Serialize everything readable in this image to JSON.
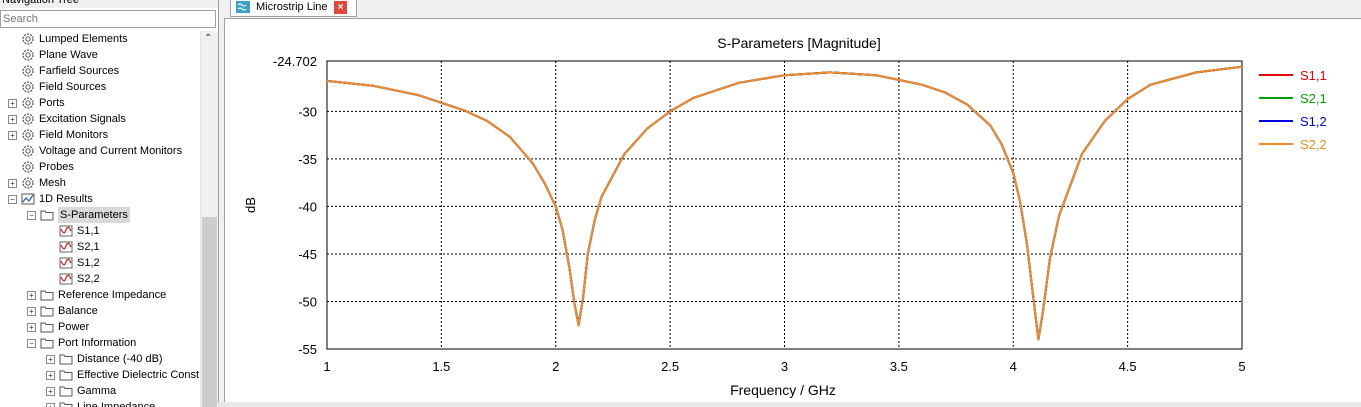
{
  "nav": {
    "title": "Navigation Tree",
    "search_placeholder": "Search",
    "items": [
      {
        "label": "Lumped Elements",
        "level": 1,
        "icon": "gear-icon",
        "expander": ""
      },
      {
        "label": "Plane Wave",
        "level": 1,
        "icon": "gear-icon",
        "expander": ""
      },
      {
        "label": "Farfield Sources",
        "level": 1,
        "icon": "gear-icon",
        "expander": ""
      },
      {
        "label": "Field Sources",
        "level": 1,
        "icon": "gear-icon",
        "expander": ""
      },
      {
        "label": "Ports",
        "level": 1,
        "icon": "gear-icon",
        "expander": "+"
      },
      {
        "label": "Excitation Signals",
        "level": 1,
        "icon": "gear-icon",
        "expander": "+"
      },
      {
        "label": "Field Monitors",
        "level": 1,
        "icon": "gear-icon",
        "expander": "+"
      },
      {
        "label": "Voltage and Current Monitors",
        "level": 1,
        "icon": "gear-icon",
        "expander": ""
      },
      {
        "label": "Probes",
        "level": 1,
        "icon": "gear-icon",
        "expander": ""
      },
      {
        "label": "Mesh",
        "level": 1,
        "icon": "gear-icon",
        "expander": "+"
      },
      {
        "label": "1D Results",
        "level": 1,
        "icon": "chart-icon",
        "expander": "−"
      },
      {
        "label": "S-Parameters",
        "level": 2,
        "icon": "folder-icon",
        "expander": "−",
        "selected": true
      },
      {
        "label": "S1,1",
        "level": 3,
        "icon": "curve-icon",
        "expander": ""
      },
      {
        "label": "S2,1",
        "level": 3,
        "icon": "curve-icon",
        "expander": ""
      },
      {
        "label": "S1,2",
        "level": 3,
        "icon": "curve-icon",
        "expander": ""
      },
      {
        "label": "S2,2",
        "level": 3,
        "icon": "curve-icon",
        "expander": ""
      },
      {
        "label": "Reference Impedance",
        "level": 2,
        "icon": "folder-icon",
        "expander": "+"
      },
      {
        "label": "Balance",
        "level": 2,
        "icon": "folder-icon",
        "expander": "+"
      },
      {
        "label": "Power",
        "level": 2,
        "icon": "folder-icon",
        "expander": "+"
      },
      {
        "label": "Port Information",
        "level": 2,
        "icon": "folder-icon",
        "expander": "−"
      },
      {
        "label": "Distance (-40 dB)",
        "level": 3,
        "icon": "folder-icon",
        "expander": "+"
      },
      {
        "label": "Effective Dielectric Const",
        "level": 3,
        "icon": "folder-icon",
        "expander": "+"
      },
      {
        "label": "Gamma",
        "level": 3,
        "icon": "folder-icon",
        "expander": "+"
      },
      {
        "label": "Line Impedance",
        "level": 3,
        "icon": "folder-icon",
        "expander": "+"
      }
    ]
  },
  "tab": {
    "label": "Microstrip Line",
    "icon": "microstrip-icon",
    "close": "close-icon"
  },
  "colors": {
    "s11": "#e8000b",
    "s21": "#00a000",
    "s12": "#0000e0",
    "s22": "#f28c28",
    "grid": "#000000"
  },
  "chart_data": {
    "type": "line",
    "title": "S-Parameters [Magnitude]",
    "xlabel": "Frequency / GHz",
    "ylabel": "dB",
    "xlim": [
      1,
      5
    ],
    "ylim": [
      -55,
      -24.702
    ],
    "xticks": [
      "1",
      "1.5",
      "2",
      "2.5",
      "3",
      "3.5",
      "4",
      "4.5",
      "5"
    ],
    "yticks": [
      "-24.702",
      "-30",
      "-35",
      "-40",
      "-45",
      "-50",
      "-55"
    ],
    "ytick_values": [
      -24.702,
      -30,
      -35,
      -40,
      -45,
      -50,
      -55
    ],
    "grid": true,
    "legend_position": "right",
    "x": [
      1.0,
      1.2,
      1.4,
      1.6,
      1.7,
      1.8,
      1.9,
      1.95,
      2.0,
      2.03,
      2.06,
      2.08,
      2.1,
      2.12,
      2.14,
      2.17,
      2.2,
      2.3,
      2.4,
      2.5,
      2.6,
      2.8,
      3.0,
      3.2,
      3.4,
      3.6,
      3.7,
      3.8,
      3.9,
      3.95,
      4.0,
      4.03,
      4.06,
      4.09,
      4.11,
      4.13,
      4.16,
      4.2,
      4.3,
      4.4,
      4.5,
      4.6,
      4.8,
      5.0
    ],
    "series": [
      {
        "name": "S1,1",
        "values": [
          -26.8,
          -27.3,
          -28.3,
          -29.9,
          -31.0,
          -32.7,
          -35.5,
          -37.5,
          -40.0,
          -42.5,
          -46.5,
          -50.0,
          -52.5,
          -49.5,
          -45.0,
          -41.5,
          -39.0,
          -34.5,
          -31.8,
          -30.0,
          -28.6,
          -27.0,
          -26.2,
          -25.9,
          -26.2,
          -27.2,
          -28.0,
          -29.3,
          -31.5,
          -33.5,
          -36.5,
          -39.5,
          -44.0,
          -50.0,
          -54.0,
          -51.0,
          -45.5,
          -41.0,
          -34.5,
          -31.0,
          -28.7,
          -27.2,
          -25.9,
          -25.3
        ]
      },
      {
        "name": "S2,1",
        "values": [
          -26.8,
          -27.3,
          -28.3,
          -29.9,
          -31.0,
          -32.7,
          -35.5,
          -37.5,
          -40.0,
          -42.5,
          -46.5,
          -50.0,
          -52.5,
          -49.5,
          -45.0,
          -41.5,
          -39.0,
          -34.5,
          -31.8,
          -30.0,
          -28.6,
          -27.0,
          -26.2,
          -25.9,
          -26.2,
          -27.2,
          -28.0,
          -29.3,
          -31.5,
          -33.5,
          -36.5,
          -39.5,
          -44.0,
          -50.0,
          -54.0,
          -51.0,
          -45.5,
          -41.0,
          -34.5,
          -31.0,
          -28.7,
          -27.2,
          -25.9,
          -25.3
        ]
      },
      {
        "name": "S1,2",
        "values": [
          -26.8,
          -27.3,
          -28.3,
          -29.9,
          -31.0,
          -32.7,
          -35.5,
          -37.5,
          -40.0,
          -42.5,
          -46.5,
          -50.0,
          -52.5,
          -49.5,
          -45.0,
          -41.5,
          -39.0,
          -34.5,
          -31.8,
          -30.0,
          -28.6,
          -27.0,
          -26.2,
          -25.9,
          -26.2,
          -27.2,
          -28.0,
          -29.3,
          -31.5,
          -33.5,
          -36.5,
          -39.5,
          -44.0,
          -50.0,
          -54.0,
          -51.0,
          -45.5,
          -41.0,
          -34.5,
          -31.0,
          -28.7,
          -27.2,
          -25.9,
          -25.3
        ]
      },
      {
        "name": "S2,2",
        "values": [
          -26.8,
          -27.3,
          -28.3,
          -29.9,
          -31.0,
          -32.7,
          -35.5,
          -37.5,
          -40.0,
          -42.5,
          -46.5,
          -50.0,
          -52.5,
          -49.5,
          -45.0,
          -41.5,
          -39.0,
          -34.5,
          -31.8,
          -30.0,
          -28.6,
          -27.0,
          -26.2,
          -25.9,
          -26.2,
          -27.2,
          -28.0,
          -29.3,
          -31.5,
          -33.5,
          -36.5,
          -39.5,
          -44.0,
          -50.0,
          -54.0,
          -51.0,
          -45.5,
          -41.0,
          -34.5,
          -31.0,
          -28.7,
          -27.2,
          -25.9,
          -25.3
        ]
      }
    ]
  }
}
